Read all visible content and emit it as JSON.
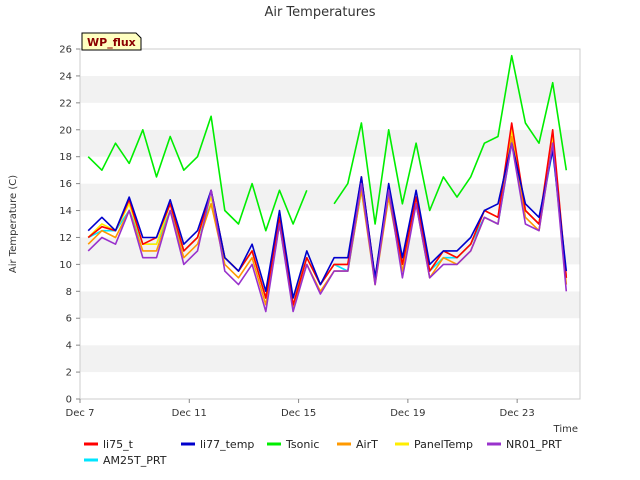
{
  "chart_data": {
    "type": "line",
    "title": "Air Temperatures",
    "xlabel": "Time",
    "ylabel": "Air Temperature (C)",
    "badge": "WP_flux",
    "x_ticks": [
      "Dec 7",
      "Dec 11",
      "Dec 15",
      "Dec 19",
      "Dec 23"
    ],
    "x_tick_days": [
      7,
      11,
      15,
      19,
      23
    ],
    "xlim": [
      7,
      25.3
    ],
    "ylim": [
      0,
      26
    ],
    "y_ticks": [
      0,
      2,
      4,
      6,
      8,
      10,
      12,
      14,
      16,
      18,
      20,
      22,
      24,
      26
    ],
    "grid": "horizontal bands",
    "legend_position": "bottom",
    "x": [
      7.3,
      7.8,
      8.3,
      8.8,
      9.3,
      9.8,
      10.3,
      10.8,
      11.3,
      11.8,
      12.3,
      12.8,
      13.3,
      13.8,
      14.3,
      14.8,
      15.3,
      15.8,
      16.3,
      16.8,
      17.3,
      17.8,
      18.3,
      18.8,
      19.3,
      19.8,
      20.3,
      20.8,
      21.3,
      21.8,
      22.3,
      22.8,
      23.3,
      23.8,
      24.3,
      24.8
    ],
    "series": [
      {
        "name": "li75_t",
        "color": "#ff0000",
        "values": [
          12.0,
          12.8,
          12.5,
          14.8,
          11.5,
          12.0,
          14.5,
          11.0,
          12.0,
          15.5,
          10.5,
          9.5,
          11.0,
          7.5,
          13.5,
          7.0,
          10.5,
          8.5,
          10.0,
          10.0,
          16.5,
          9.0,
          15.5,
          10.0,
          15.0,
          9.5,
          11.0,
          10.5,
          11.5,
          14.0,
          13.5,
          20.5,
          14.0,
          13.0,
          20.0,
          9.0
        ]
      },
      {
        "name": "li77_temp",
        "color": "#0000cc",
        "values": [
          12.5,
          13.5,
          12.5,
          15.0,
          12.0,
          12.0,
          14.8,
          11.5,
          12.5,
          15.5,
          10.5,
          9.5,
          11.5,
          8.0,
          14.0,
          7.5,
          11.0,
          8.5,
          10.5,
          10.5,
          16.5,
          9.0,
          16.0,
          10.5,
          15.5,
          10.0,
          11.0,
          11.0,
          12.0,
          14.0,
          14.5,
          19.0,
          14.5,
          13.5,
          18.5,
          9.5
        ]
      },
      {
        "name": "Tsonic",
        "color": "#00ee00",
        "values": [
          18.0,
          17.0,
          19.0,
          17.5,
          20.0,
          16.5,
          19.5,
          17.0,
          18.0,
          21.0,
          14.0,
          13.0,
          16.0,
          12.5,
          15.5,
          13.0,
          15.5,
          null,
          14.5,
          16.0,
          20.5,
          13.0,
          20.0,
          14.5,
          19.0,
          14.0,
          16.5,
          15.0,
          16.5,
          19.0,
          19.5,
          25.5,
          20.5,
          19.0,
          23.5,
          17.0
        ]
      },
      {
        "name": "AirT",
        "color": "#ff9900",
        "values": [
          11.5,
          12.5,
          12.0,
          14.0,
          11.0,
          11.0,
          14.0,
          10.5,
          11.5,
          14.5,
          10.0,
          9.0,
          10.5,
          7.0,
          13.0,
          6.8,
          10.0,
          8.0,
          9.5,
          9.5,
          15.5,
          8.5,
          15.0,
          9.5,
          14.5,
          9.0,
          10.5,
          10.0,
          11.0,
          13.5,
          13.0,
          19.5,
          13.5,
          12.5,
          19.0,
          8.5
        ]
      },
      {
        "name": "PanelTemp",
        "color": "#ffee00",
        "values": [
          12.0,
          13.0,
          12.5,
          14.5,
          11.5,
          11.5,
          14.5,
          11.0,
          12.0,
          15.0,
          10.5,
          9.5,
          11.0,
          7.5,
          13.5,
          7.5,
          10.5,
          8.5,
          10.0,
          10.0,
          16.0,
          9.0,
          15.5,
          10.0,
          15.0,
          9.5,
          11.0,
          10.5,
          11.5,
          14.0,
          13.5,
          20.0,
          14.0,
          13.0,
          19.5,
          9.0
        ]
      },
      {
        "name": "NR01_PRT",
        "color": "#9932cc",
        "values": [
          11.0,
          12.0,
          11.5,
          14.0,
          10.5,
          10.5,
          14.0,
          10.0,
          11.0,
          15.5,
          9.5,
          8.5,
          10.0,
          6.5,
          13.0,
          6.5,
          10.0,
          7.8,
          9.5,
          9.5,
          16.0,
          8.5,
          15.5,
          9.0,
          14.5,
          9.0,
          10.0,
          10.0,
          11.0,
          13.5,
          13.0,
          19.0,
          13.0,
          12.5,
          19.0,
          8.0
        ]
      },
      {
        "name": "AM25T_PRT",
        "color": "#00e5ff",
        "values": [
          12.0,
          12.5,
          12.5,
          14.0,
          11.5,
          11.5,
          14.0,
          11.0,
          12.0,
          14.5,
          10.5,
          9.5,
          11.0,
          7.5,
          13.0,
          7.5,
          10.5,
          8.5,
          10.0,
          9.5,
          15.5,
          9.0,
          15.0,
          10.0,
          14.5,
          9.5,
          10.5,
          10.5,
          11.5,
          13.5,
          13.0,
          19.0,
          14.0,
          13.0,
          18.5,
          9.0
        ]
      }
    ]
  }
}
